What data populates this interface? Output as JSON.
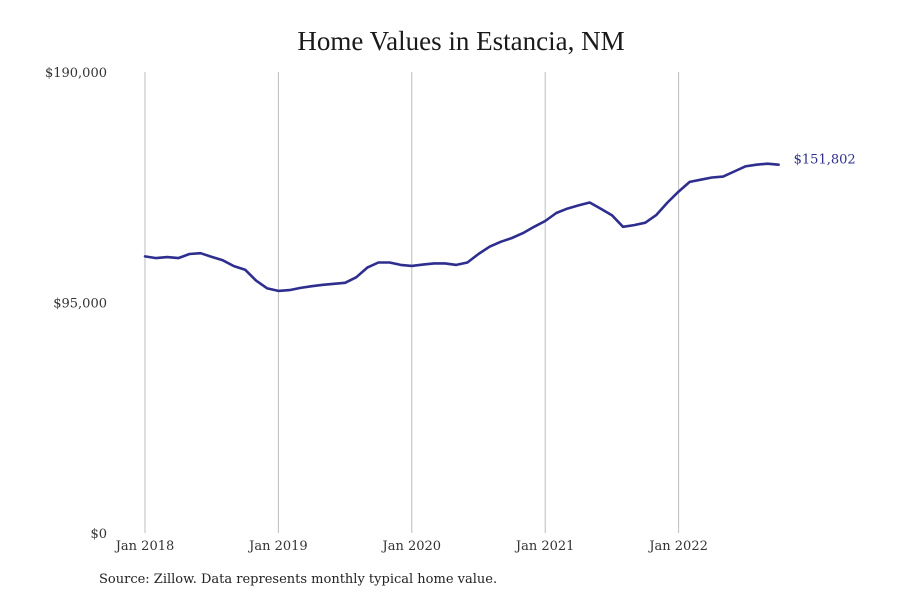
{
  "chart_data": {
    "type": "line",
    "title": "Home Values in Estancia, NM",
    "xlabel": "",
    "ylabel": "",
    "x_ticks": [
      "Jan 2018",
      "Jan 2019",
      "Jan 2020",
      "Jan 2021",
      "Jan 2022"
    ],
    "y_ticks": [
      {
        "value": 0,
        "label": "$0"
      },
      {
        "value": 95000,
        "label": "$95,000"
      },
      {
        "value": 190000,
        "label": "$190,000"
      }
    ],
    "ylim": [
      0,
      190000
    ],
    "x_range": [
      "2018-01",
      "2023-01"
    ],
    "grid": "vertical lines at year ticks",
    "line_color": "#2e2e8f",
    "end_label": "$151,802",
    "series": [
      {
        "x": [
          "2018-01",
          "2018-02",
          "2018-03",
          "2018-04",
          "2018-05",
          "2018-06",
          "2018-07",
          "2018-08",
          "2018-09",
          "2018-10",
          "2018-11",
          "2018-12",
          "2019-01",
          "2019-02",
          "2019-03",
          "2019-04",
          "2019-05",
          "2019-06",
          "2019-07",
          "2019-08",
          "2019-09",
          "2019-10",
          "2019-11",
          "2019-12",
          "2020-01",
          "2020-02",
          "2020-03",
          "2020-04",
          "2020-05",
          "2020-06",
          "2020-07",
          "2020-08",
          "2020-09",
          "2020-10",
          "2020-11",
          "2020-12",
          "2021-01",
          "2021-02",
          "2021-03",
          "2021-04",
          "2021-05",
          "2021-06",
          "2021-07",
          "2021-08",
          "2021-09",
          "2021-10",
          "2021-11",
          "2021-12",
          "2022-01",
          "2022-02",
          "2022-03",
          "2022-04",
          "2022-05",
          "2022-06",
          "2022-07",
          "2022-08",
          "2022-09",
          "2022-10"
        ],
        "values": [
          114000,
          113300,
          113700,
          113300,
          115000,
          115300,
          113800,
          112400,
          110000,
          108500,
          104000,
          100800,
          99800,
          100100,
          101000,
          101700,
          102300,
          102700,
          103100,
          105400,
          109400,
          111500,
          111500,
          110500,
          110100,
          110600,
          111100,
          111100,
          110500,
          111500,
          115000,
          118000,
          120000,
          121600,
          123600,
          126200,
          128600,
          131900,
          133700,
          135000,
          136200,
          133600,
          131000,
          126200,
          126900,
          127900,
          131100,
          136200,
          140700,
          144700,
          145600,
          146500,
          146900,
          149000,
          151100,
          151800,
          152200,
          151802
        ]
      }
    ],
    "source_note": "Source: Zillow. Data represents monthly typical home value."
  }
}
